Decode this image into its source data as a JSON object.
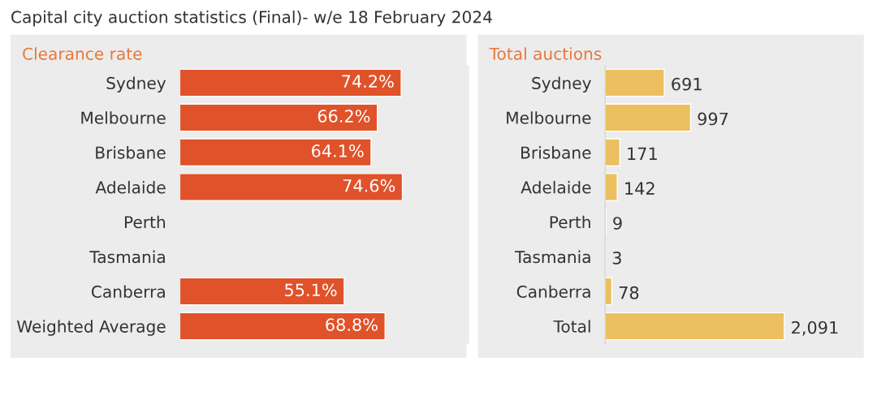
{
  "chart_data": [
    {
      "type": "bar",
      "orientation": "horizontal",
      "title": "Clearance rate",
      "annotations": [
        "Capital city auction statistics (Final)- w/e 18 February 2024"
      ],
      "categories": [
        "Sydney",
        "Melbourne",
        "Brisbane",
        "Adelaide",
        "Perth",
        "Tasmania",
        "Canberra",
        "Weighted Average"
      ],
      "values": [
        74.2,
        66.2,
        64.1,
        74.6,
        null,
        null,
        55.1,
        68.8
      ],
      "value_labels": [
        "74.2%",
        "66.2%",
        "64.1%",
        "74.6%",
        null,
        null,
        "55.1%",
        "68.8%"
      ],
      "color": "#e0522a",
      "grid": false,
      "legend": false,
      "tick_labels": "y"
    },
    {
      "type": "bar",
      "orientation": "horizontal",
      "title": "Total auctions",
      "categories": [
        "Sydney",
        "Melbourne",
        "Brisbane",
        "Adelaide",
        "Perth",
        "Tasmania",
        "Canberra",
        "Total"
      ],
      "values": [
        691,
        997,
        171,
        142,
        9,
        3,
        78,
        2091
      ],
      "value_labels": [
        "691",
        "997",
        "171",
        "142",
        "9",
        "3",
        "78",
        "2,091"
      ],
      "color": "#ecc060",
      "grid": false,
      "legend": false,
      "tick_labels": "y"
    }
  ]
}
